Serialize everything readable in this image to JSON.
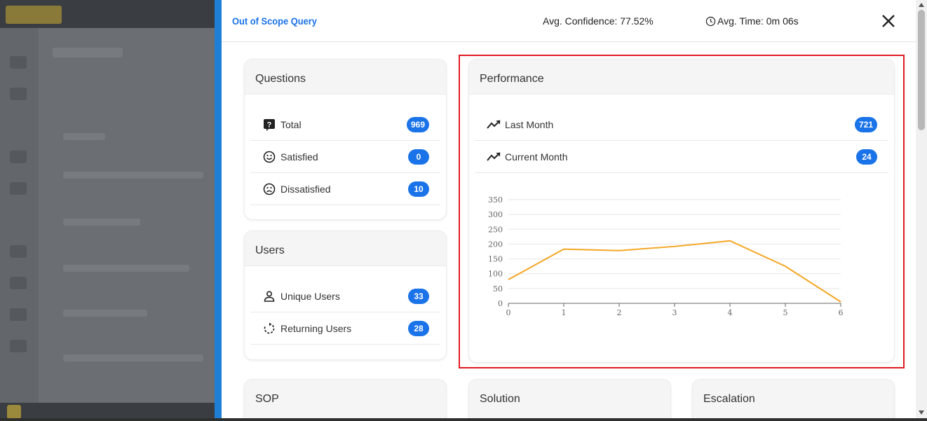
{
  "header": {
    "title": "Out of Scope Query",
    "avg_confidence": "Avg. Confidence: 77.52%",
    "avg_time": "Avg. Time: 0m 06s",
    "close_icon": "close-icon"
  },
  "questions": {
    "heading": "Questions",
    "items": [
      {
        "label": "Total",
        "count": "969",
        "icon": "question-icon"
      },
      {
        "label": "Satisfied",
        "count": "0",
        "icon": "smile-icon"
      },
      {
        "label": "Dissatisfied",
        "count": "10",
        "icon": "frown-icon"
      }
    ]
  },
  "users": {
    "heading": "Users",
    "items": [
      {
        "label": "Unique Users",
        "count": "33",
        "icon": "user-icon"
      },
      {
        "label": "Returning Users",
        "count": "28",
        "icon": "refresh-icon"
      }
    ]
  },
  "performance": {
    "heading": "Performance",
    "items": [
      {
        "label": "Last Month",
        "count": "721",
        "icon": "trend-icon"
      },
      {
        "label": "Current Month",
        "count": "24",
        "icon": "trend-icon"
      }
    ]
  },
  "bottom_cards": {
    "sop": "SOP",
    "solution": "Solution",
    "escalation": "Escalation"
  },
  "colors": {
    "accent": "#1a73e8",
    "line": "#f5a623",
    "highlight": "#e01b24"
  },
  "chart_data": {
    "type": "line",
    "title": "",
    "xlabel": "",
    "ylabel": "",
    "x": [
      0,
      1,
      2,
      3,
      4,
      5,
      6
    ],
    "values": [
      80,
      183,
      178,
      192,
      211,
      125,
      5
    ],
    "ylim": [
      0,
      350
    ],
    "xlim": [
      0,
      6
    ],
    "yticks": [
      0,
      50,
      100,
      150,
      200,
      250,
      300,
      350
    ],
    "xticks": [
      0,
      1,
      2,
      3,
      4,
      5,
      6
    ],
    "grid": true
  }
}
